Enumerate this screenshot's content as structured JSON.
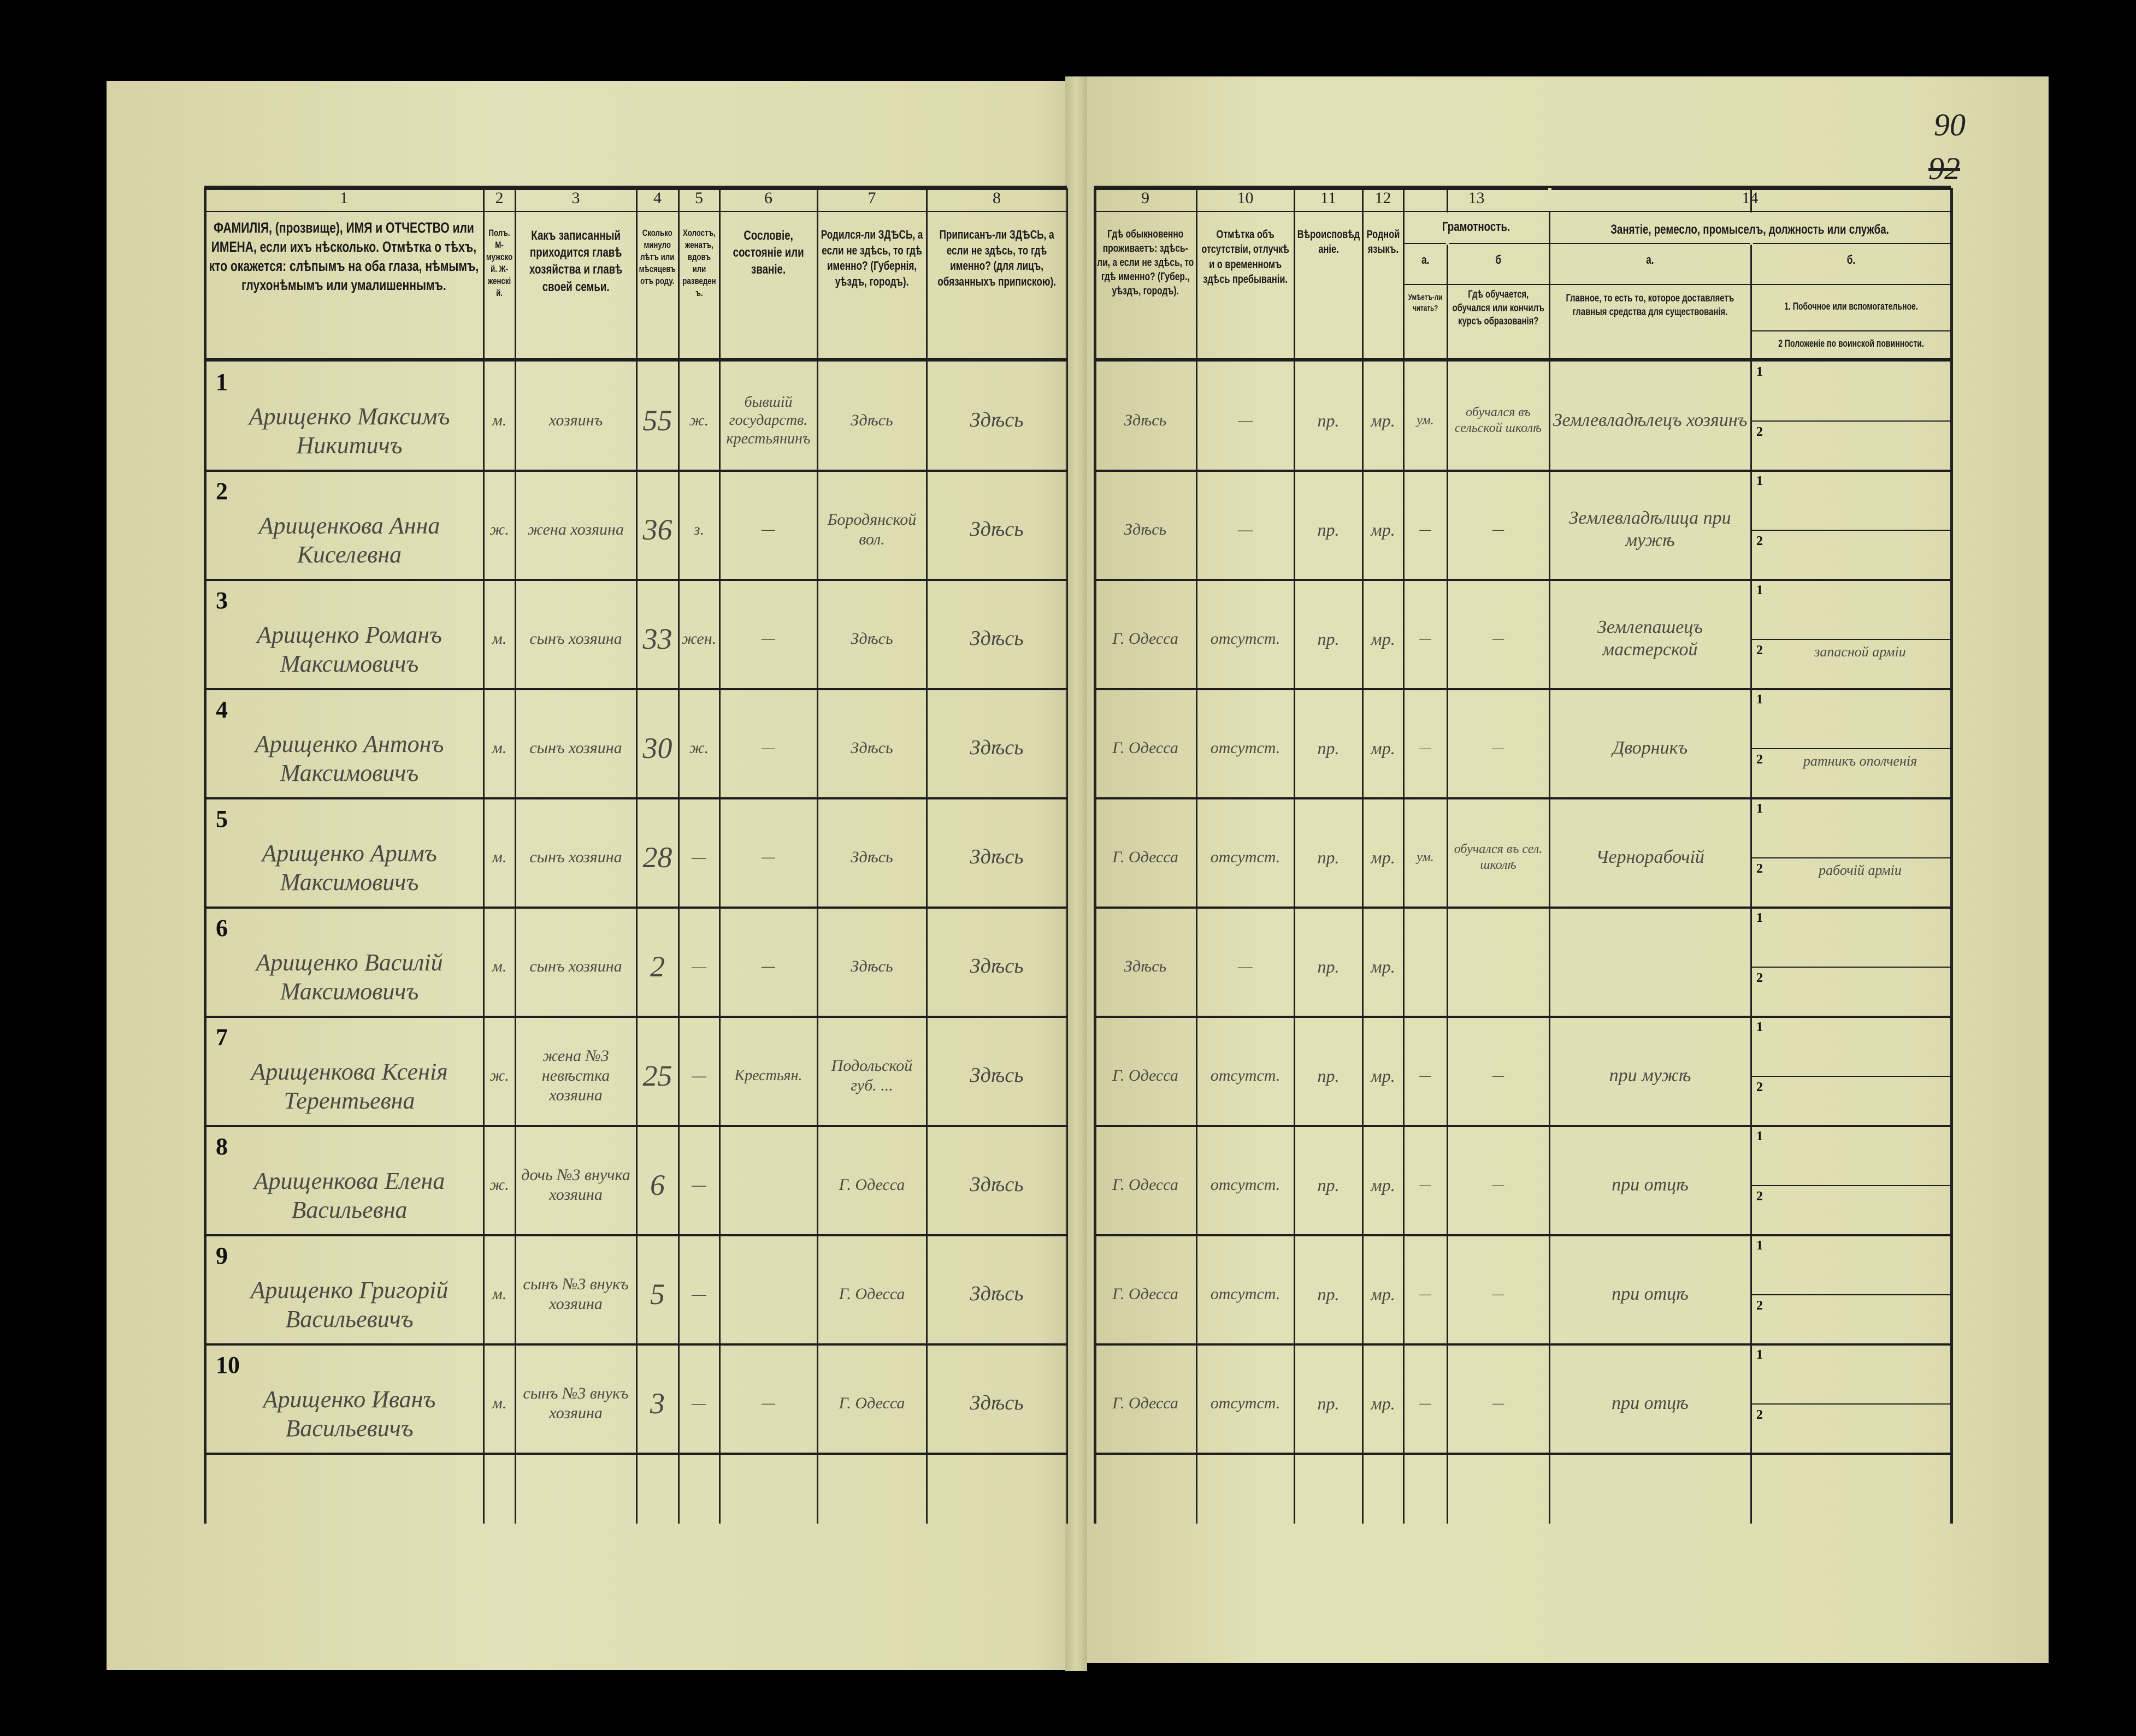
{
  "page_numbers": {
    "old": "90",
    "new": "92"
  },
  "columns": {
    "c1": {
      "num": "1",
      "text": "ФАМИЛІЯ, (прозвище), ИМЯ и ОТЧЕСТВО или ИМЕНА, если ихъ нѣсколько. Отмѣтка о тѣхъ, кто окажется: слѣпымъ на оба глаза, нѣмымъ, глухонѣмымъ или умалишеннымъ."
    },
    "c2": {
      "num": "2",
      "text": "Полъ. М-мужской. Ж-женскій."
    },
    "c3": {
      "num": "3",
      "text": "Какъ записанный приходится главѣ хозяйства и главѣ своей семьи."
    },
    "c4": {
      "num": "4",
      "text": "Сколько минуло лѣтъ или мѣсяцевъ отъ роду."
    },
    "c5": {
      "num": "5",
      "text": "Холостъ, женатъ, вдовъ или разведенъ."
    },
    "c6": {
      "num": "6",
      "text": "Сословіе, состояніе или званіе."
    },
    "c7": {
      "num": "7",
      "text": "Родился-ли ЗДѢСЬ, а если не здѣсь, то гдѣ именно? (Губернія, уѣздъ, городъ)."
    },
    "c8": {
      "num": "8",
      "text": "Приписанъ-ли ЗДѢСЬ, а если не здѣсь, то гдѣ именно? (для лицъ, обязанныхъ припискою)."
    },
    "c9": {
      "num": "9",
      "text": "Гдѣ обыкновенно проживаетъ: здѣсь-ли, а если не здѣсь, то гдѣ именно? (Губер., уѣздъ, городъ)."
    },
    "c10": {
      "num": "10",
      "text": "Отмѣтка объ отсутствіи, отлучкѣ и о временномъ здѣсь пребываніи."
    },
    "c11": {
      "num": "11",
      "text": "Вѣроисповѣданіе."
    },
    "c12": {
      "num": "12",
      "text": "Родной языкъ."
    },
    "c13": {
      "num": "13",
      "title": "Грамотность.",
      "a": "а.",
      "a_text": "Умѣетъ-ли читать?",
      "b": "б",
      "b_text": "Гдѣ обучается, обучался или кончилъ курсъ образованія?"
    },
    "c14": {
      "num": "14",
      "title": "Занятіе, ремесло, промыселъ, должность или служба.",
      "a": "а.",
      "a_text": "Главное, то есть то, которое доставляетъ главныя средства для существованія.",
      "b": "б.",
      "b1_text": "1. Побочное или вспомогательное.",
      "b2_text": "2 Положеніе по воинской повинности."
    }
  },
  "sub_labels": {
    "one": "1",
    "two": "2"
  },
  "rows": [
    {
      "num": "1",
      "name": "Арищенко Максимъ Никитичъ",
      "sex": "м.",
      "relation": "хозяинъ",
      "age": "55",
      "marital": "ж.",
      "estate": "бывшій государств. крестьянинъ",
      "born": "Здѣсь",
      "registered": "Здѣсь",
      "residence": "Здѣсь",
      "absence": "—",
      "religion": "пр.",
      "language": "мр.",
      "literate": "ум.",
      "school": "обучался въ сельской школѣ",
      "occ_main": "Землевладѣлецъ хозяинъ",
      "occ_side": "",
      "military": ""
    },
    {
      "num": "2",
      "name": "Арищенкова Анна Киселевна",
      "sex": "ж.",
      "relation": "жена хозяина",
      "age": "36",
      "marital": "з.",
      "estate": "—",
      "born": "Бородянской вол.",
      "registered": "Здѣсь",
      "residence": "Здѣсь",
      "absence": "—",
      "religion": "пр.",
      "language": "мр.",
      "literate": "—",
      "school": "—",
      "occ_main": "Землевладѣлица при мужѣ",
      "occ_side": "",
      "military": ""
    },
    {
      "num": "3",
      "name": "Арищенко Романъ Максимовичъ",
      "sex": "м.",
      "relation": "сынъ хозяина",
      "age": "33",
      "marital": "жен.",
      "estate": "—",
      "born": "Здѣсь",
      "registered": "Здѣсь",
      "residence": "Г. Одесса",
      "absence": "отсутст.",
      "religion": "пр.",
      "language": "мр.",
      "literate": "—",
      "school": "—",
      "occ_main": "Землепашецъ мастерской",
      "occ_side": "",
      "military": "запасной арміи"
    },
    {
      "num": "4",
      "name": "Арищенко Антонъ Максимовичъ",
      "sex": "м.",
      "relation": "сынъ хозяина",
      "age": "30",
      "marital": "ж.",
      "estate": "—",
      "born": "Здѣсь",
      "registered": "Здѣсь",
      "residence": "Г. Одесса",
      "absence": "отсутст.",
      "religion": "пр.",
      "language": "мр.",
      "literate": "—",
      "school": "—",
      "occ_main": "Дворникъ",
      "occ_side": "",
      "military": "ратникъ ополченія"
    },
    {
      "num": "5",
      "name": "Арищенко Аримъ Максимовичъ",
      "sex": "м.",
      "relation": "сынъ хозяина",
      "age": "28",
      "marital": "—",
      "estate": "—",
      "born": "Здѣсь",
      "registered": "Здѣсь",
      "residence": "Г. Одесса",
      "absence": "отсутст.",
      "religion": "пр.",
      "language": "мр.",
      "literate": "ум.",
      "school": "обучался въ сел. школѣ",
      "occ_main": "Чернорабочій",
      "occ_side": "",
      "military": "рабочій арміи"
    },
    {
      "num": "6",
      "name": "Арищенко Василій Максимовичъ",
      "sex": "м.",
      "relation": "сынъ хозяина",
      "age": "2",
      "marital": "—",
      "estate": "—",
      "born": "Здѣсь",
      "registered": "Здѣсь",
      "residence": "Здѣсь",
      "absence": "—",
      "religion": "пр.",
      "language": "мр.",
      "literate": "",
      "school": "",
      "occ_main": "",
      "occ_side": "",
      "military": ""
    },
    {
      "num": "7",
      "name": "Арищенкова Ксенія Терентьевна",
      "sex": "ж.",
      "relation": "жена №3 невѣстка хозяина",
      "age": "25",
      "marital": "—",
      "estate": "Крестьян.",
      "born": "Подольской губ. ...",
      "registered": "Здѣсь",
      "residence": "Г. Одесса",
      "absence": "отсутст.",
      "religion": "пр.",
      "language": "мр.",
      "literate": "—",
      "school": "—",
      "occ_main": "при мужѣ",
      "occ_side": "",
      "military": ""
    },
    {
      "num": "8",
      "name": "Арищенкова Елена Васильевна",
      "sex": "ж.",
      "relation": "дочь №3 внучка хозяина",
      "age": "6",
      "marital": "—",
      "estate": "",
      "born": "Г. Одесса",
      "registered": "Здѣсь",
      "residence": "Г. Одесса",
      "absence": "отсутст.",
      "religion": "пр.",
      "language": "мр.",
      "literate": "—",
      "school": "—",
      "occ_main": "при отцѣ",
      "occ_side": "",
      "military": ""
    },
    {
      "num": "9",
      "name": "Арищенко Григорій Васильевичъ",
      "sex": "м.",
      "relation": "сынъ №3 внукъ хозяина",
      "age": "5",
      "marital": "—",
      "estate": "",
      "born": "Г. Одесса",
      "registered": "Здѣсь",
      "residence": "Г. Одесса",
      "absence": "отсутст.",
      "religion": "пр.",
      "language": "мр.",
      "literate": "—",
      "school": "—",
      "occ_main": "при отцѣ",
      "occ_side": "",
      "military": ""
    },
    {
      "num": "10",
      "name": "Арищенко Иванъ Васильевичъ",
      "sex": "м.",
      "relation": "сынъ №3 внукъ хозяина",
      "age": "3",
      "marital": "—",
      "estate": "—",
      "born": "Г. Одесса",
      "registered": "Здѣсь",
      "residence": "Г. Одесса",
      "absence": "отсутст.",
      "religion": "пр.",
      "language": "мр.",
      "literate": "—",
      "school": "—",
      "occ_main": "при отцѣ",
      "occ_side": "",
      "military": ""
    }
  ]
}
